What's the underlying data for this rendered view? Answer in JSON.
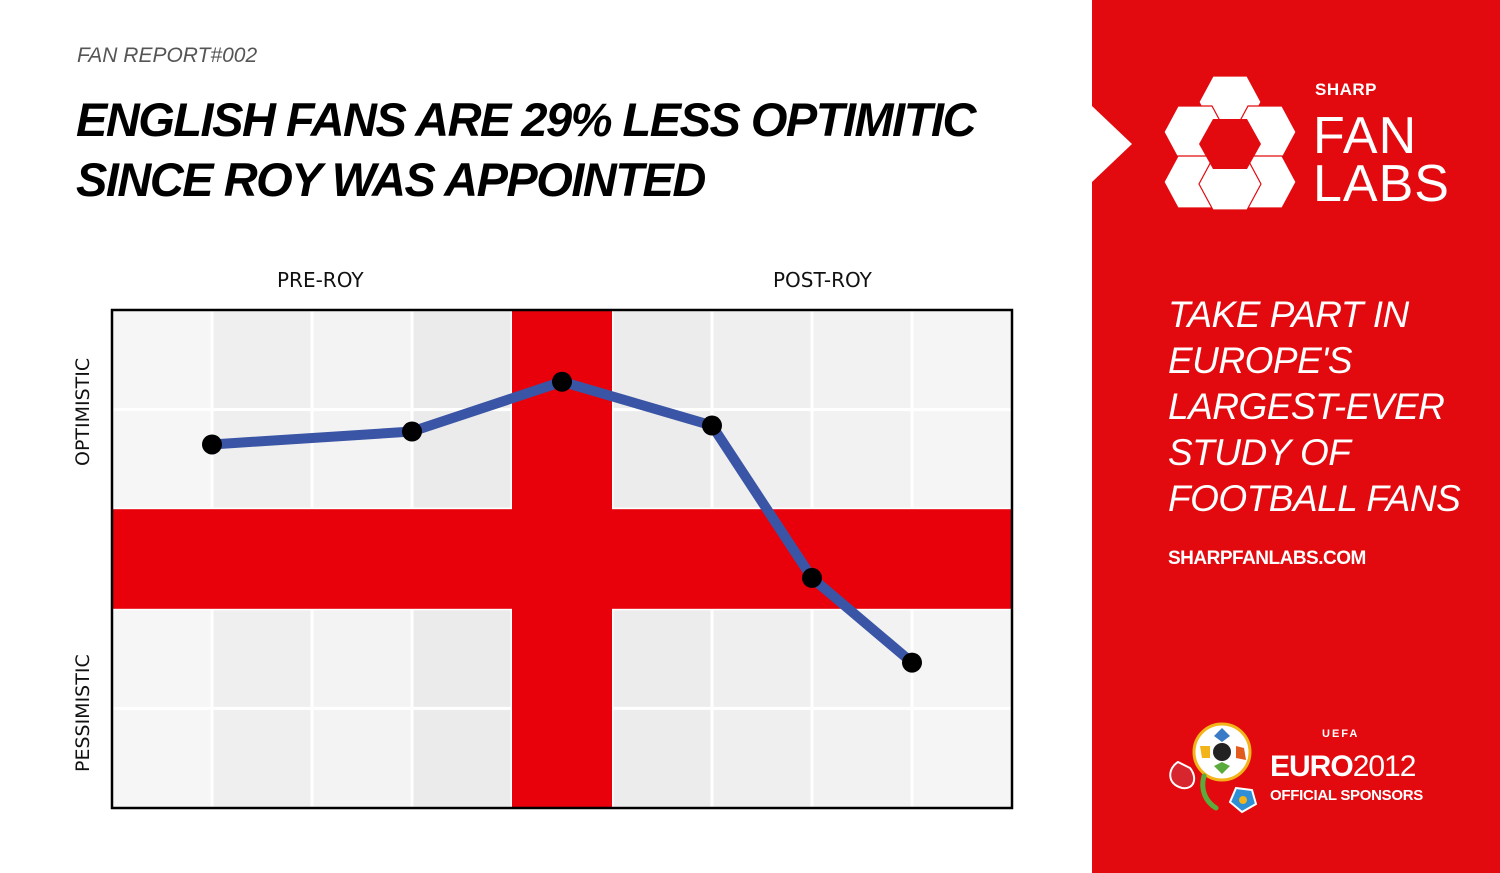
{
  "report_label": "FAN REPORT#002",
  "headline": {
    "line1": "ENGLISH FANS ARE 29% LESS OPTIMITIC",
    "line2": "SINCE ROY WAS APPOINTED"
  },
  "chart_data": {
    "type": "line",
    "title": "",
    "xlabel": "",
    "ylabel": "",
    "phase_labels": [
      "PRE-ROY",
      "POST-ROY"
    ],
    "y_axis_labels": {
      "top": "OPTIMISTIC",
      "bottom": "PESSIMISTIC"
    },
    "x": [
      1,
      3,
      4.5,
      6,
      7,
      8
    ],
    "values": [
      3.65,
      3.78,
      4.28,
      3.84,
      2.31,
      1.46
    ],
    "xlim": [
      0,
      9
    ],
    "ylim": [
      0,
      5
    ],
    "background": "england-flag-grid",
    "line_color": "#3b55a6",
    "marker_color": "#000000",
    "flag_red": "#e8000b",
    "grid": true
  },
  "sidebar": {
    "background": "#e20a0f",
    "brand_small": "SHARP",
    "brand_line1": "FAN",
    "brand_line2": "LABS",
    "logo_icon": "football-hexagon-icon",
    "tagline": [
      "TAKE PART IN",
      "EUROPE'S",
      "LARGEST-EVER",
      "STUDY OF",
      "FOOTBALL FANS"
    ],
    "website": "SHARPFANLABS.COM",
    "euro_logo_icon": "euro2012-logo-icon",
    "uefa": "UEFA",
    "euro_prefix": "EURO",
    "euro_year": "2012",
    "sponsors": "OFFICIAL SPONSORS"
  }
}
